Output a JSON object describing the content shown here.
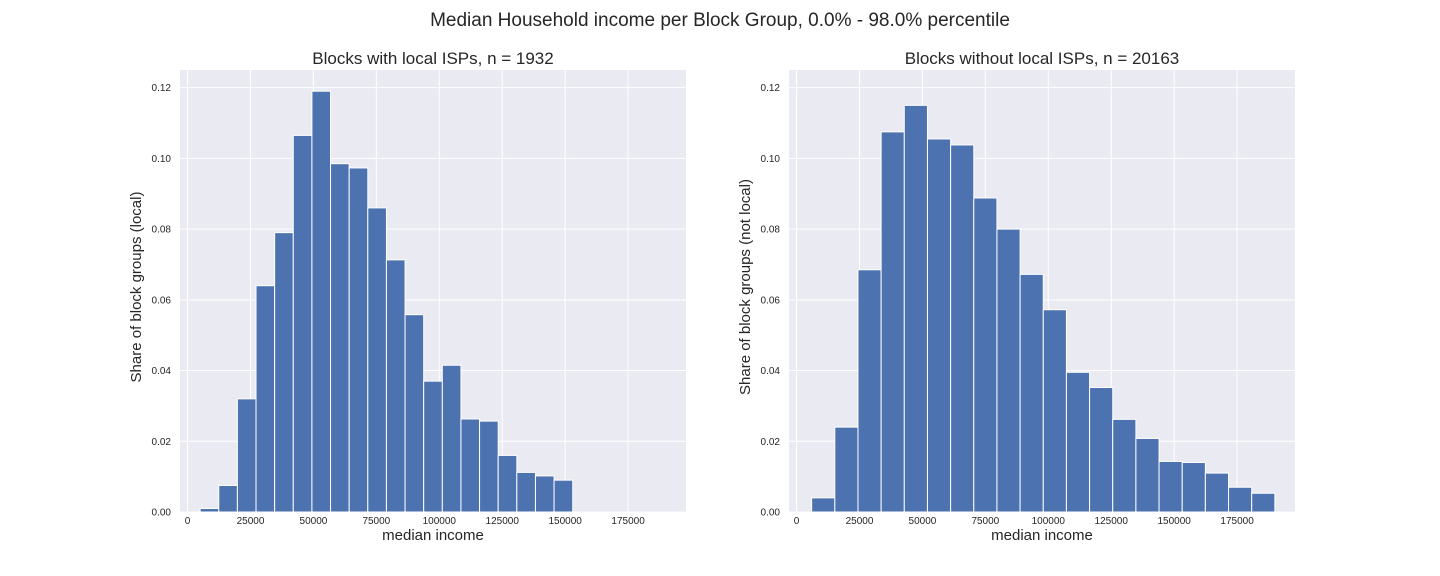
{
  "suptitle": "Median Household income per Block Group, 0.0% - 98.0% percentile",
  "colors": {
    "bar": "#4c72b0",
    "background": "#eaeaf2",
    "grid": "#ffffff",
    "bar_edge": "#ffffff"
  },
  "chart_data": [
    {
      "type": "bar",
      "title": "Blocks with local ISPs, n = 1932",
      "xlabel": "median income",
      "ylabel": "Share of block groups (local)",
      "xlim": [
        -3000,
        198000
      ],
      "ylim": [
        0,
        0.125
      ],
      "xticks": [
        0,
        25000,
        50000,
        75000,
        100000,
        125000,
        150000,
        175000
      ],
      "yticks": [
        0.0,
        0.02,
        0.04,
        0.06,
        0.08,
        0.1,
        0.12
      ],
      "grid": true,
      "bin_edges": [
        5000,
        12400,
        19800,
        27200,
        34600,
        42000,
        49400,
        56800,
        64200,
        71600,
        79000,
        86400,
        93800,
        101200,
        108600,
        116000,
        123400,
        130800,
        138200,
        145600,
        153000
      ],
      "values": [
        0.001,
        0.0075,
        0.032,
        0.064,
        0.079,
        0.1065,
        0.119,
        0.0985,
        0.0973,
        0.086,
        0.0713,
        0.0558,
        0.037,
        0.0415,
        0.0263,
        0.0257,
        0.016,
        0.0112,
        0.0102,
        0.009
      ]
    },
    {
      "type": "bar",
      "title": "Blocks without local ISPs, n = 20163",
      "xlabel": "median income",
      "ylabel": "Share of block groups (not local)",
      "xlim": [
        -3000,
        198000
      ],
      "ylim": [
        0,
        0.125
      ],
      "xticks": [
        0,
        25000,
        50000,
        75000,
        100000,
        125000,
        150000,
        175000
      ],
      "yticks": [
        0.0,
        0.02,
        0.04,
        0.06,
        0.08,
        0.1,
        0.12
      ],
      "grid": true,
      "bin_edges": [
        6000,
        15200,
        24400,
        33600,
        42800,
        52000,
        61200,
        70400,
        79600,
        88800,
        98000,
        107200,
        116400,
        125600,
        134800,
        144000,
        153200,
        162400,
        171600,
        180800,
        190000
      ],
      "values": [
        0.004,
        0.024,
        0.0685,
        0.1075,
        0.115,
        0.1055,
        0.1038,
        0.0888,
        0.08,
        0.0672,
        0.0572,
        0.0395,
        0.0352,
        0.0262,
        0.0208,
        0.0143,
        0.014,
        0.011,
        0.007,
        0.0053
      ]
    }
  ]
}
